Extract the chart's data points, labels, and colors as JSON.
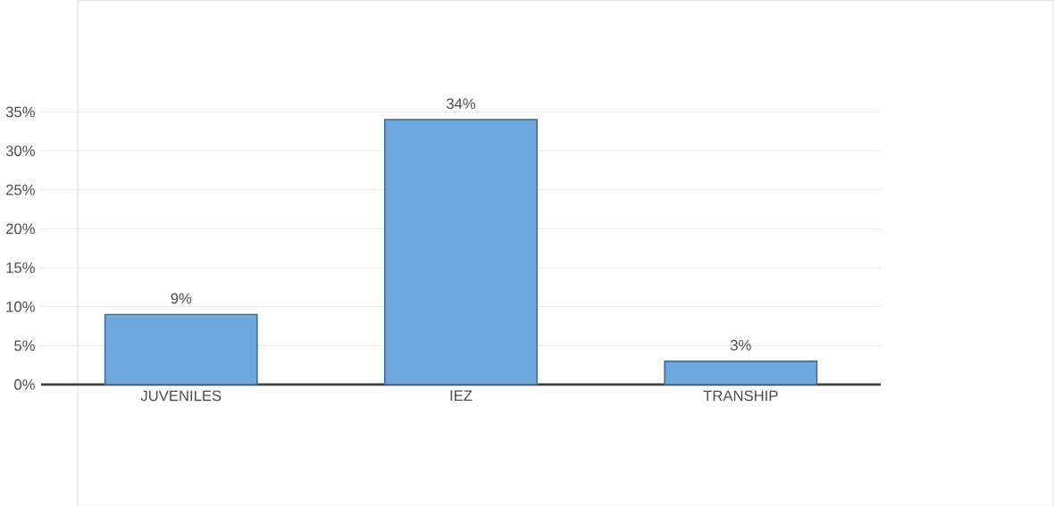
{
  "chart_data": {
    "type": "bar",
    "categories": [
      "JUVENILES",
      "IEZ",
      "TRANSHIP"
    ],
    "values": [
      9,
      34,
      3
    ],
    "value_labels": [
      "9%",
      "34%",
      "3%"
    ],
    "color": "#6fa8e0",
    "ylim": [
      0,
      35
    ],
    "yticks": [
      {
        "value": 0,
        "label": "0%"
      },
      {
        "value": 5,
        "label": "5%"
      },
      {
        "value": 10,
        "label": "10%"
      },
      {
        "value": 15,
        "label": "15%"
      },
      {
        "value": 20,
        "label": "20%"
      },
      {
        "value": 25,
        "label": "25%"
      },
      {
        "value": 30,
        "label": "30%"
      },
      {
        "value": 35,
        "label": "35%"
      }
    ],
    "grid": "y"
  }
}
